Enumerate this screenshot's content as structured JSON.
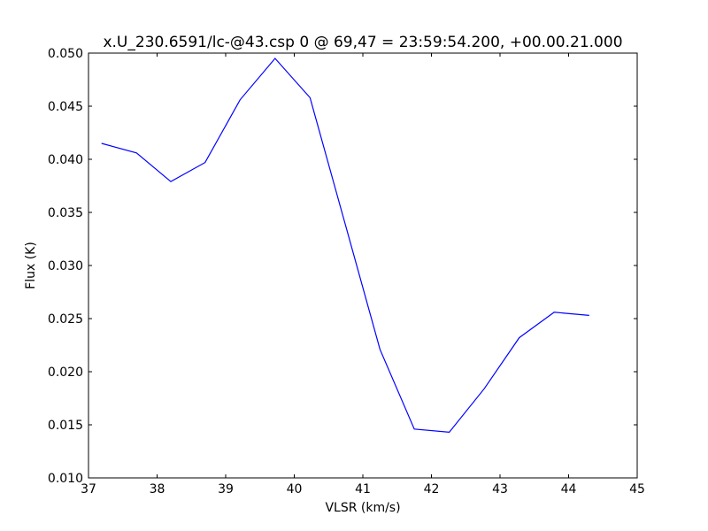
{
  "chart_data": {
    "type": "line",
    "title": "x.U_230.6591/lc-@43.csp 0 @ 69,47 = 23:59:54.200, +00.00.21.000",
    "x_label": "VLSR (km/s)",
    "y_label": "Flux (K)",
    "x": [
      37.19,
      37.7,
      38.2,
      38.7,
      39.21,
      39.72,
      40.23,
      40.73,
      41.25,
      41.75,
      42.26,
      42.77,
      43.28,
      43.79,
      44.3
    ],
    "series": [
      {
        "color": "#0000ff",
        "values": [
          0.0415,
          0.0406,
          0.0379,
          0.0397,
          0.0456,
          0.0495,
          0.0458,
          0.0342,
          0.0221,
          0.0146,
          0.0143,
          0.0184,
          0.0232,
          0.0256,
          0.0253
        ]
      }
    ],
    "xlim": [
      37,
      45
    ],
    "ylim": [
      0.01,
      0.05
    ],
    "xticks": [
      37,
      38,
      39,
      40,
      41,
      42,
      43,
      44,
      45
    ],
    "yticks": [
      {
        "value": 0.01,
        "label": "0.010"
      },
      {
        "value": 0.015,
        "label": "0.015"
      },
      {
        "value": 0.02,
        "label": "0.020"
      },
      {
        "value": 0.025,
        "label": "0.025"
      },
      {
        "value": 0.03,
        "label": "0.030"
      },
      {
        "value": 0.035,
        "label": "0.035"
      },
      {
        "value": 0.04,
        "label": "0.040"
      },
      {
        "value": 0.045,
        "label": "0.045"
      },
      {
        "value": 0.05,
        "label": "0.050"
      }
    ],
    "grid": false
  }
}
